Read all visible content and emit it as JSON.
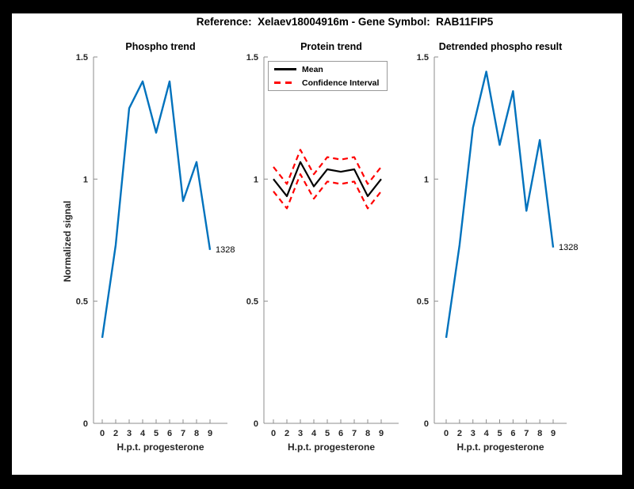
{
  "figure": {
    "title": "Reference:  Xelaev18004916m - Gene Symbol:  RAB11FIP5"
  },
  "axes": {
    "xlabel": "H.p.t. progesterone",
    "ylabel": "Normalized signal",
    "xtick_labels": [
      "0",
      "2",
      "3",
      "4",
      "5",
      "6",
      "7",
      "8",
      "9"
    ],
    "ytick_labels": [
      "0",
      "0.5",
      "1",
      "1.5"
    ],
    "ytick_values": [
      0,
      0.5,
      1,
      1.5
    ],
    "ylim": [
      0,
      1.5
    ]
  },
  "legend": {
    "mean_label": "Mean",
    "ci_label": "Confidence Interval"
  },
  "colors": {
    "line_blue": "#0072BD",
    "ci_red": "#FF0000",
    "mean_black": "#000000",
    "axis_gray": "#8c8c8c",
    "tick_text": "#262626",
    "frame_black": "#000000",
    "canvas_white": "#ffffff"
  },
  "chart_data": [
    {
      "type": "line",
      "title": "Phospho trend",
      "xlabel": "H.p.t. progesterone",
      "ylabel": "Normalized signal",
      "x_categories": [
        "0",
        "2",
        "3",
        "4",
        "5",
        "6",
        "7",
        "8",
        "9"
      ],
      "ylim": [
        0,
        1.5
      ],
      "grid": false,
      "end_label": "1328",
      "series": [
        {
          "name": "Phospho signal",
          "color": "#0072BD",
          "dash": "solid",
          "values": [
            0.35,
            0.73,
            1.29,
            1.4,
            1.19,
            1.4,
            0.91,
            1.07,
            0.71
          ]
        }
      ]
    },
    {
      "type": "line",
      "title": "Protein trend",
      "xlabel": "H.p.t. progesterone",
      "x_categories": [
        "0",
        "2",
        "3",
        "4",
        "5",
        "6",
        "7",
        "8",
        "9"
      ],
      "ylim": [
        0,
        1.5
      ],
      "grid": false,
      "legend_position": "top-left",
      "legend_entries": [
        "Mean",
        "Confidence Interval"
      ],
      "series": [
        {
          "name": "Mean",
          "color": "#000000",
          "dash": "solid",
          "values": [
            1.0,
            0.93,
            1.07,
            0.97,
            1.04,
            1.03,
            1.04,
            0.93,
            1.0
          ]
        },
        {
          "name": "Confidence Interval upper",
          "color": "#FF0000",
          "dash": "dashed",
          "values": [
            1.05,
            0.98,
            1.12,
            1.02,
            1.09,
            1.08,
            1.09,
            0.98,
            1.05
          ]
        },
        {
          "name": "Confidence Interval lower",
          "color": "#FF0000",
          "dash": "dashed",
          "values": [
            0.95,
            0.88,
            1.02,
            0.92,
            0.99,
            0.98,
            0.99,
            0.88,
            0.95
          ]
        }
      ]
    },
    {
      "type": "line",
      "title": "Detrended phospho result",
      "xlabel": "H.p.t. progesterone",
      "x_categories": [
        "0",
        "2",
        "3",
        "4",
        "5",
        "6",
        "7",
        "8",
        "9"
      ],
      "ylim": [
        0,
        1.5
      ],
      "grid": false,
      "end_label": "1328",
      "series": [
        {
          "name": "Detrended phospho signal",
          "color": "#0072BD",
          "dash": "solid",
          "values": [
            0.35,
            0.73,
            1.21,
            1.44,
            1.14,
            1.36,
            0.87,
            1.16,
            0.72
          ]
        }
      ]
    }
  ]
}
